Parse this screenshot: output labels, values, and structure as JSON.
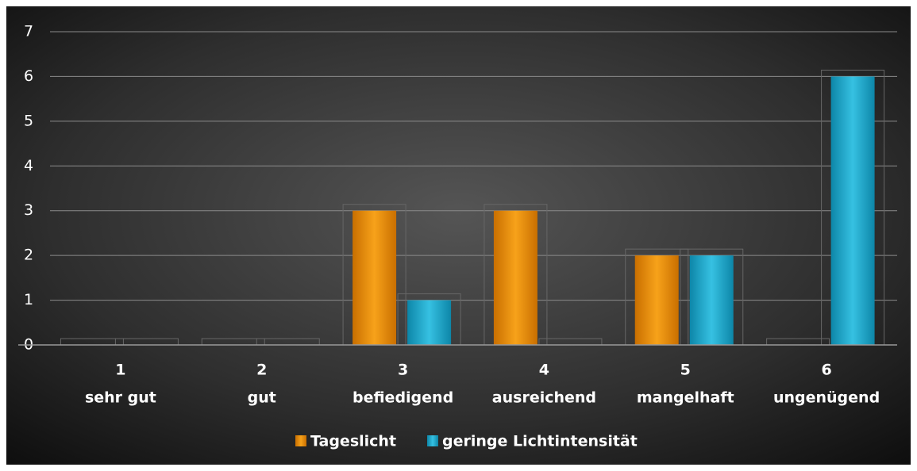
{
  "chart_data": {
    "type": "bar",
    "categories": [
      [
        "1",
        "sehr gut"
      ],
      [
        "2",
        "gut"
      ],
      [
        "3",
        "befiedigend"
      ],
      [
        "4",
        "ausreichend"
      ],
      [
        "5",
        "mangelhaft"
      ],
      [
        "6",
        "ungenügend"
      ]
    ],
    "series": [
      {
        "name": "Tageslicht",
        "color": "#f39a0e",
        "values": [
          0,
          0,
          3,
          3,
          2,
          0
        ]
      },
      {
        "name": "geringe Lichtintensität",
        "color": "#22b2d6",
        "values": [
          0,
          0,
          1,
          0,
          2,
          6
        ]
      }
    ],
    "ylim": [
      0,
      7
    ],
    "yticks": [
      0,
      1,
      2,
      3,
      4,
      5,
      6,
      7
    ],
    "grid": true,
    "legend": "bottom"
  }
}
